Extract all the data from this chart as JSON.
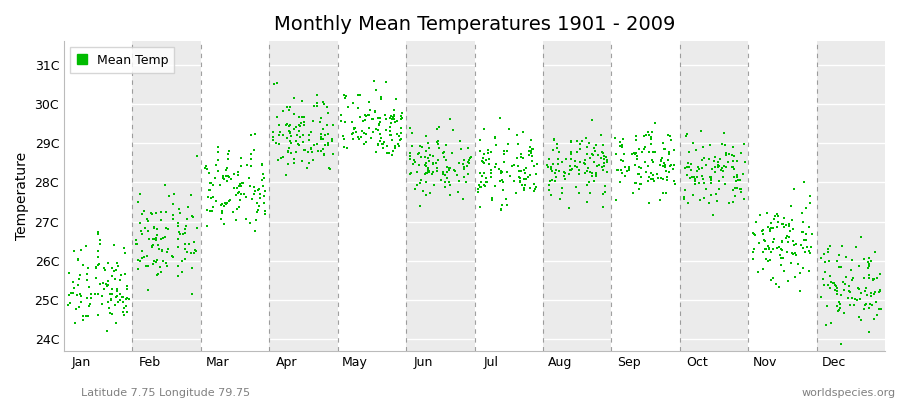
{
  "title": "Monthly Mean Temperatures 1901 - 2009",
  "ylabel": "Temperature",
  "xlabel_note": "Latitude 7.75 Longitude 79.75",
  "watermark": "worldspecies.org",
  "legend_label": "Mean Temp",
  "marker_color": "#00bb00",
  "marker_size": 3,
  "bg_color": "#ffffff",
  "plot_bg_white": "#ffffff",
  "plot_bg_gray": "#ebebeb",
  "yticks": [
    24,
    25,
    26,
    27,
    28,
    29,
    30,
    31
  ],
  "ytick_labels": [
    "24C",
    "25C",
    "26C",
    "27C",
    "28C",
    "29C",
    "30C",
    "31C"
  ],
  "ylim": [
    23.7,
    31.6
  ],
  "months": [
    "Jan",
    "Feb",
    "Mar",
    "Apr",
    "May",
    "Jun",
    "Jul",
    "Aug",
    "Sep",
    "Oct",
    "Nov",
    "Dec"
  ],
  "num_years": 109,
  "monthly_means": [
    25.3,
    26.5,
    27.8,
    29.2,
    29.5,
    28.5,
    28.3,
    28.4,
    28.5,
    28.2,
    26.5,
    25.4
  ],
  "monthly_stds": [
    0.55,
    0.55,
    0.55,
    0.5,
    0.45,
    0.45,
    0.4,
    0.4,
    0.42,
    0.5,
    0.6,
    0.55
  ]
}
